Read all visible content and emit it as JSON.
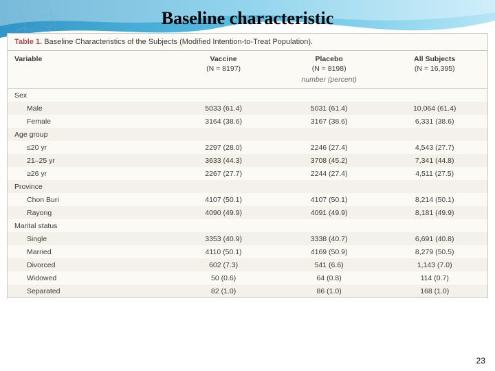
{
  "slide": {
    "title": "Baseline characteristic",
    "page_number": "23",
    "bg": {
      "wave_color_light": "#aee3f5",
      "wave_color_mid": "#46b7e0",
      "wave_color_dark": "#1a8abf",
      "swirl_color": "#d9eef6"
    }
  },
  "table": {
    "label": "Table 1.",
    "caption": "Baseline Characteristics of the Subjects (Modified Intention-to-Treat Population).",
    "header": {
      "variable": "Variable",
      "col1_name": "Vaccine",
      "col1_n": "(N = 8197)",
      "col2_name": "Placebo",
      "col2_n": "(N = 8198)",
      "col3_name": "All Subjects",
      "col3_n": "(N = 16,395)",
      "unit": "number (percent)"
    },
    "rows": [
      {
        "type": "group",
        "label": "Sex"
      },
      {
        "type": "data",
        "label": "Male",
        "c1": "5033 (61.4)",
        "c2": "5031 (61.4)",
        "c3": "10,064 (61.4)"
      },
      {
        "type": "data",
        "label": "Female",
        "c1": "3164 (38.6)",
        "c2": "3167 (38.6)",
        "c3": "6,331 (38.6)"
      },
      {
        "type": "group",
        "label": "Age group"
      },
      {
        "type": "data",
        "label": "≤20 yr",
        "c1": "2297 (28.0)",
        "c2": "2246 (27.4)",
        "c3": "4,543 (27.7)"
      },
      {
        "type": "data",
        "label": "21–25 yr",
        "c1": "3633 (44.3)",
        "c2": "3708 (45.2)",
        "c3": "7,341 (44.8)"
      },
      {
        "type": "data",
        "label": "≥26 yr",
        "c1": "2267 (27.7)",
        "c2": "2244 (27.4)",
        "c3": "4,511 (27.5)"
      },
      {
        "type": "group",
        "label": "Province"
      },
      {
        "type": "data",
        "label": "Chon Buri",
        "c1": "4107 (50.1)",
        "c2": "4107 (50.1)",
        "c3": "8,214 (50.1)"
      },
      {
        "type": "data",
        "label": "Rayong",
        "c1": "4090 (49.9)",
        "c2": "4091 (49.9)",
        "c3": "8,181 (49.9)"
      },
      {
        "type": "group",
        "label": "Marital status"
      },
      {
        "type": "data",
        "label": "Single",
        "c1": "3353 (40.9)",
        "c2": "3338 (40.7)",
        "c3": "6,691 (40.8)"
      },
      {
        "type": "data",
        "label": "Married",
        "c1": "4110 (50.1)",
        "c2": "4169 (50.9)",
        "c3": "8,279 (50.5)"
      },
      {
        "type": "data",
        "label": "Divorced",
        "c1": "602 (7.3)",
        "c2": "541 (6.6)",
        "c3": "1,143 (7.0)"
      },
      {
        "type": "data",
        "label": "Widowed",
        "c1": "50 (0.6)",
        "c2": "64 (0.8)",
        "c3": "114 (0.7)"
      },
      {
        "type": "data",
        "label": "Separated",
        "c1": "82 (1.0)",
        "c2": "86 (1.0)",
        "c3": "168 (1.0)"
      }
    ],
    "colors": {
      "caption_bg": "#fbfaf5",
      "border": "#c9c9c9",
      "label_color": "#b1494f",
      "text_color": "#3a3a3a",
      "alt_row": "#f3f1e9"
    }
  }
}
